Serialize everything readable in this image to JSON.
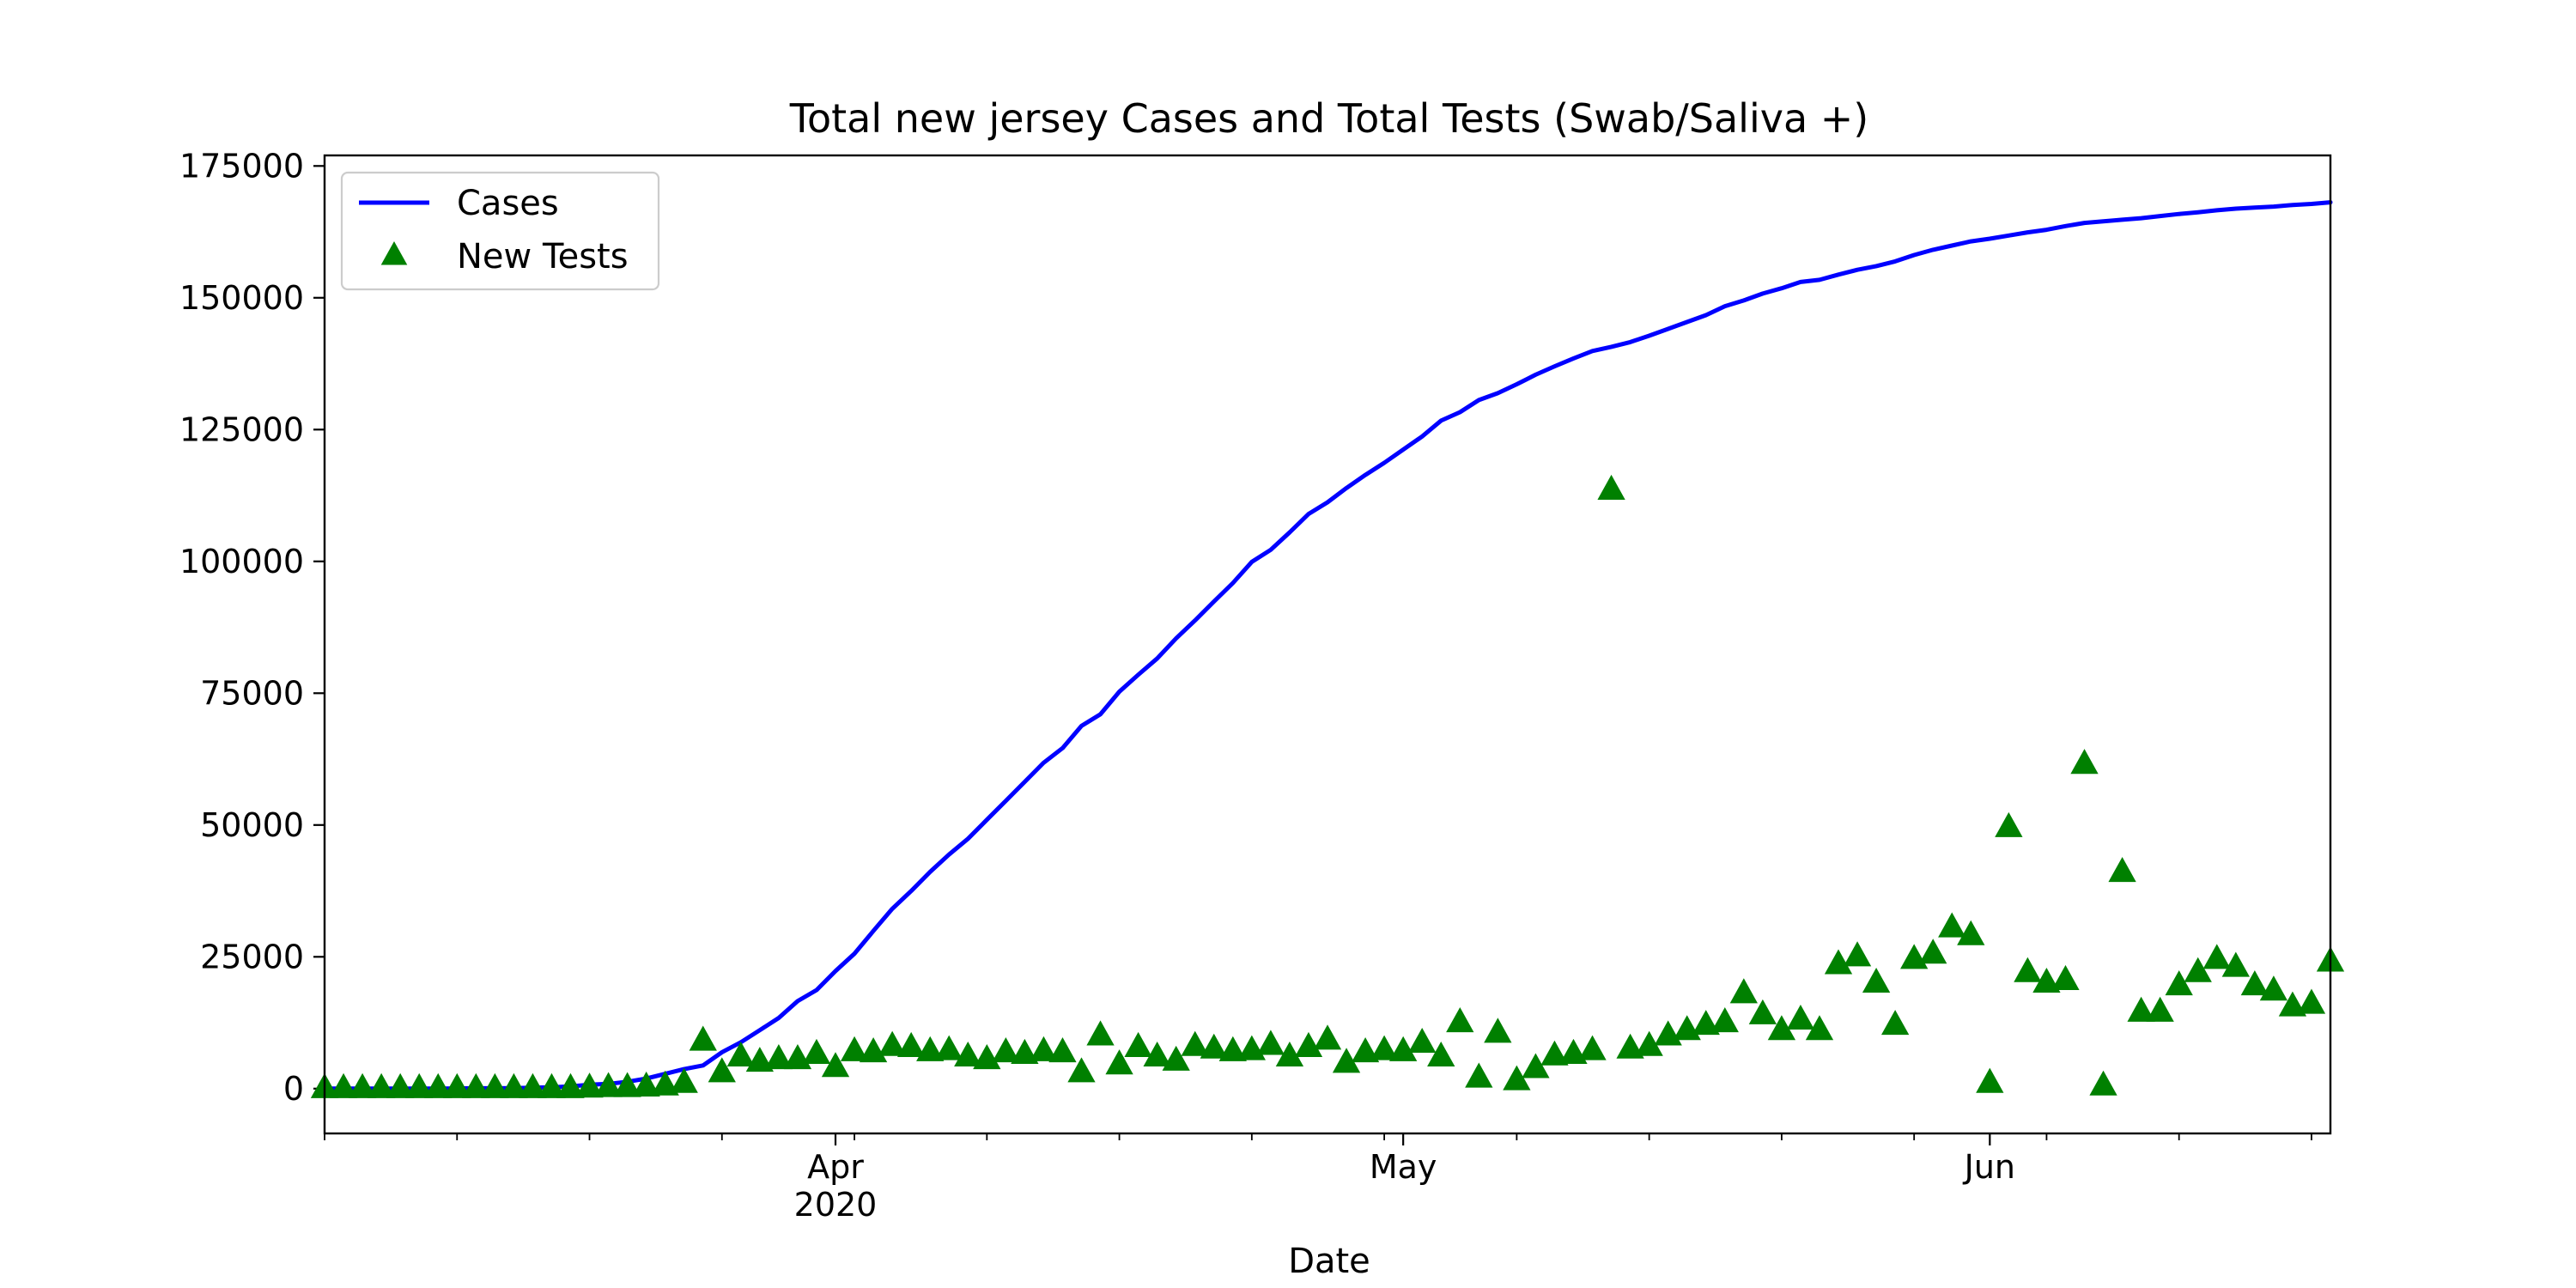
{
  "chart_data": {
    "type": "line",
    "title": "Total new jersey Cases and Total Tests (Swab/Saliva +)",
    "xlabel": "Date",
    "ylabel": "",
    "x_range": [
      "2020-03-05",
      "2020-06-19"
    ],
    "ylim": [
      -8500,
      177000
    ],
    "y_ticks": [
      0,
      25000,
      50000,
      75000,
      100000,
      125000,
      150000,
      175000
    ],
    "y_tick_labels": [
      "0",
      "25000",
      "50000",
      "75000",
      "100000",
      "125000",
      "150000",
      "175000"
    ],
    "x_ticks": [
      {
        "date": "2020-04-01",
        "label": "Apr",
        "sublabel": "2020"
      },
      {
        "date": "2020-05-01",
        "label": "May",
        "sublabel": ""
      },
      {
        "date": "2020-06-01",
        "label": "Jun",
        "sublabel": ""
      }
    ],
    "legend": {
      "location": "top-left"
    },
    "grid": false,
    "series": [
      {
        "name": "Cases",
        "kind": "line",
        "color": "#0000ff",
        "points": [
          [
            "2020-03-05",
            0
          ],
          [
            "2020-03-06",
            0
          ],
          [
            "2020-03-07",
            0
          ],
          [
            "2020-03-08",
            0
          ],
          [
            "2020-03-09",
            0
          ],
          [
            "2020-03-10",
            10
          ],
          [
            "2020-03-11",
            20
          ],
          [
            "2020-03-12",
            30
          ],
          [
            "2020-03-13",
            60
          ],
          [
            "2020-03-14",
            70
          ],
          [
            "2020-03-15",
            100
          ],
          [
            "2020-03-16",
            180
          ],
          [
            "2020-03-17",
            270
          ],
          [
            "2020-03-18",
            430
          ],
          [
            "2020-03-19",
            740
          ],
          [
            "2020-03-20",
            890
          ],
          [
            "2020-03-21",
            1300
          ],
          [
            "2020-03-22",
            1900
          ],
          [
            "2020-03-23",
            2800
          ],
          [
            "2020-03-24",
            3700
          ],
          [
            "2020-03-25",
            4400
          ],
          [
            "2020-03-26",
            6900
          ],
          [
            "2020-03-27",
            8800
          ],
          [
            "2020-03-28",
            11100
          ],
          [
            "2020-03-29",
            13400
          ],
          [
            "2020-03-30",
            16600
          ],
          [
            "2020-03-31",
            18700
          ],
          [
            "2020-04-01",
            22300
          ],
          [
            "2020-04-02",
            25600
          ],
          [
            "2020-04-03",
            29900
          ],
          [
            "2020-04-04",
            34100
          ],
          [
            "2020-04-05",
            37500
          ],
          [
            "2020-04-06",
            41100
          ],
          [
            "2020-04-07",
            44400
          ],
          [
            "2020-04-08",
            47400
          ],
          [
            "2020-04-09",
            51000
          ],
          [
            "2020-04-10",
            54600
          ],
          [
            "2020-04-11",
            58200
          ],
          [
            "2020-04-12",
            61800
          ],
          [
            "2020-04-13",
            64600
          ],
          [
            "2020-04-14",
            68800
          ],
          [
            "2020-04-15",
            71000
          ],
          [
            "2020-04-16",
            75300
          ],
          [
            "2020-04-17",
            78500
          ],
          [
            "2020-04-18",
            81600
          ],
          [
            "2020-04-19",
            85400
          ],
          [
            "2020-04-20",
            88800
          ],
          [
            "2020-04-21",
            92400
          ],
          [
            "2020-04-22",
            95900
          ],
          [
            "2020-04-23",
            99900
          ],
          [
            "2020-04-24",
            102200
          ],
          [
            "2020-04-25",
            105500
          ],
          [
            "2020-04-26",
            109000
          ],
          [
            "2020-04-27",
            111200
          ],
          [
            "2020-04-28",
            113900
          ],
          [
            "2020-04-29",
            116400
          ],
          [
            "2020-04-30",
            118700
          ],
          [
            "2020-05-01",
            121200
          ],
          [
            "2020-05-02",
            123700
          ],
          [
            "2020-05-03",
            126700
          ],
          [
            "2020-05-04",
            128300
          ],
          [
            "2020-05-05",
            130600
          ],
          [
            "2020-05-06",
            131900
          ],
          [
            "2020-05-07",
            133600
          ],
          [
            "2020-05-08",
            135400
          ],
          [
            "2020-05-09",
            137000
          ],
          [
            "2020-05-10",
            138500
          ],
          [
            "2020-05-11",
            139900
          ],
          [
            "2020-05-12",
            140700
          ],
          [
            "2020-05-13",
            141600
          ],
          [
            "2020-05-14",
            142800
          ],
          [
            "2020-05-15",
            144100
          ],
          [
            "2020-05-16",
            145400
          ],
          [
            "2020-05-17",
            146700
          ],
          [
            "2020-05-18",
            148400
          ],
          [
            "2020-05-19",
            149500
          ],
          [
            "2020-05-20",
            150800
          ],
          [
            "2020-05-21",
            151800
          ],
          [
            "2020-05-22",
            153000
          ],
          [
            "2020-05-23",
            153400
          ],
          [
            "2020-05-24",
            154400
          ],
          [
            "2020-05-25",
            155300
          ],
          [
            "2020-05-26",
            156000
          ],
          [
            "2020-05-27",
            156900
          ],
          [
            "2020-05-28",
            158100
          ],
          [
            "2020-05-29",
            159100
          ],
          [
            "2020-05-30",
            159900
          ],
          [
            "2020-05-31",
            160700
          ],
          [
            "2020-06-01",
            161200
          ],
          [
            "2020-06-02",
            161800
          ],
          [
            "2020-06-03",
            162400
          ],
          [
            "2020-06-04",
            162900
          ],
          [
            "2020-06-05",
            163600
          ],
          [
            "2020-06-06",
            164200
          ],
          [
            "2020-06-07",
            164500
          ],
          [
            "2020-06-08",
            164800
          ],
          [
            "2020-06-09",
            165100
          ],
          [
            "2020-06-10",
            165500
          ],
          [
            "2020-06-11",
            165900
          ],
          [
            "2020-06-12",
            166200
          ],
          [
            "2020-06-13",
            166600
          ],
          [
            "2020-06-14",
            166900
          ],
          [
            "2020-06-15",
            167100
          ],
          [
            "2020-06-16",
            167300
          ],
          [
            "2020-06-17",
            167600
          ],
          [
            "2020-06-18",
            167800
          ],
          [
            "2020-06-19",
            168100
          ]
        ]
      },
      {
        "name": "New Tests",
        "kind": "scatter",
        "marker": "triangle",
        "color": "#008000",
        "points": [
          [
            "2020-03-05",
            0
          ],
          [
            "2020-03-06",
            0
          ],
          [
            "2020-03-07",
            0
          ],
          [
            "2020-03-08",
            0
          ],
          [
            "2020-03-09",
            0
          ],
          [
            "2020-03-10",
            0
          ],
          [
            "2020-03-11",
            0
          ],
          [
            "2020-03-12",
            0
          ],
          [
            "2020-03-13",
            0
          ],
          [
            "2020-03-14",
            0
          ],
          [
            "2020-03-15",
            0
          ],
          [
            "2020-03-16",
            0
          ],
          [
            "2020-03-17",
            0
          ],
          [
            "2020-03-18",
            0
          ],
          [
            "2020-03-19",
            100
          ],
          [
            "2020-03-20",
            200
          ],
          [
            "2020-03-21",
            200
          ],
          [
            "2020-03-22",
            300
          ],
          [
            "2020-03-23",
            500
          ],
          [
            "2020-03-24",
            1000
          ],
          [
            "2020-03-25",
            9000
          ],
          [
            "2020-03-26",
            3000
          ],
          [
            "2020-03-27",
            6000
          ],
          [
            "2020-03-28",
            5000
          ],
          [
            "2020-03-29",
            5500
          ],
          [
            "2020-03-30",
            5500
          ],
          [
            "2020-03-31",
            6500
          ],
          [
            "2020-04-01",
            4000
          ],
          [
            "2020-04-02",
            7000
          ],
          [
            "2020-04-03",
            6800
          ],
          [
            "2020-04-04",
            8000
          ],
          [
            "2020-04-05",
            7800
          ],
          [
            "2020-04-06",
            7000
          ],
          [
            "2020-04-07",
            7200
          ],
          [
            "2020-04-08",
            6000
          ],
          [
            "2020-04-09",
            5500
          ],
          [
            "2020-04-10",
            6800
          ],
          [
            "2020-04-11",
            6500
          ],
          [
            "2020-04-12",
            7000
          ],
          [
            "2020-04-13",
            6800
          ],
          [
            "2020-04-14",
            3000
          ],
          [
            "2020-04-15",
            10000
          ],
          [
            "2020-04-16",
            4500
          ],
          [
            "2020-04-17",
            7800
          ],
          [
            "2020-04-18",
            6000
          ],
          [
            "2020-04-19",
            5200
          ],
          [
            "2020-04-20",
            8000
          ],
          [
            "2020-04-21",
            7500
          ],
          [
            "2020-04-22",
            7000
          ],
          [
            "2020-04-23",
            7200
          ],
          [
            "2020-04-24",
            8200
          ],
          [
            "2020-04-25",
            6000
          ],
          [
            "2020-04-26",
            7800
          ],
          [
            "2020-04-27",
            9200
          ],
          [
            "2020-04-28",
            4800
          ],
          [
            "2020-04-29",
            6800
          ],
          [
            "2020-04-30",
            7200
          ],
          [
            "2020-05-01",
            7000
          ],
          [
            "2020-05-02",
            8600
          ],
          [
            "2020-05-03",
            6000
          ],
          [
            "2020-05-04",
            12500
          ],
          [
            "2020-05-05",
            2000
          ],
          [
            "2020-05-06",
            10500
          ],
          [
            "2020-05-07",
            1500
          ],
          [
            "2020-05-08",
            3800
          ],
          [
            "2020-05-09",
            6200
          ],
          [
            "2020-05-10",
            6500
          ],
          [
            "2020-05-11",
            7200
          ],
          [
            "2020-05-12",
            113500
          ],
          [
            "2020-05-13",
            7500
          ],
          [
            "2020-05-14",
            8000
          ],
          [
            "2020-05-15",
            10000
          ],
          [
            "2020-05-16",
            11000
          ],
          [
            "2020-05-17",
            12000
          ],
          [
            "2020-05-18",
            12500
          ],
          [
            "2020-05-19",
            18000
          ],
          [
            "2020-05-20",
            14000
          ],
          [
            "2020-05-21",
            11000
          ],
          [
            "2020-05-22",
            13000
          ],
          [
            "2020-05-23",
            11000
          ],
          [
            "2020-05-24",
            23500
          ],
          [
            "2020-05-25",
            25000
          ],
          [
            "2020-05-26",
            20000
          ],
          [
            "2020-05-27",
            12000
          ],
          [
            "2020-05-28",
            24500
          ],
          [
            "2020-05-29",
            25500
          ],
          [
            "2020-05-30",
            30500
          ],
          [
            "2020-05-31",
            29000
          ],
          [
            "2020-06-01",
            1000
          ],
          [
            "2020-06-02",
            49500
          ],
          [
            "2020-06-03",
            22000
          ],
          [
            "2020-06-04",
            20000
          ],
          [
            "2020-06-05",
            20500
          ],
          [
            "2020-06-06",
            61500
          ],
          [
            "2020-06-07",
            500
          ],
          [
            "2020-06-08",
            41000
          ],
          [
            "2020-06-09",
            14500
          ],
          [
            "2020-06-10",
            14500
          ],
          [
            "2020-06-11",
            19500
          ],
          [
            "2020-06-12",
            22000
          ],
          [
            "2020-06-13",
            24500
          ],
          [
            "2020-06-14",
            23000
          ],
          [
            "2020-06-15",
            19500
          ],
          [
            "2020-06-16",
            18500
          ],
          [
            "2020-06-17",
            15500
          ],
          [
            "2020-06-18",
            16000
          ],
          [
            "2020-06-19",
            24000
          ]
        ]
      }
    ]
  }
}
